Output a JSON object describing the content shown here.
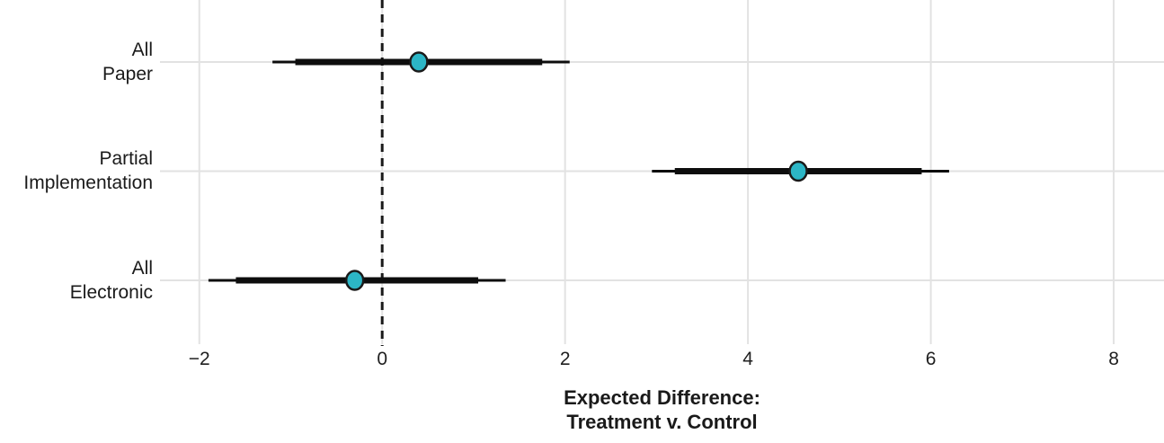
{
  "chart_data": {
    "type": "scatter",
    "subtype": "dot-and-whisker coefficient plot",
    "title": "",
    "xlabel_lines": [
      "Expected Difference:",
      "Treatment v. Control"
    ],
    "ylabel": "",
    "categories": [
      [
        "All",
        "Paper"
      ],
      [
        "Partial",
        "Implementation"
      ],
      [
        "All",
        "Electronic"
      ]
    ],
    "series": [
      {
        "label": "All Paper",
        "estimate": 0.4,
        "thick_ci": [
          -0.95,
          1.75
        ],
        "thin_ci": [
          -1.2,
          2.05
        ]
      },
      {
        "label": "Partial Implementation",
        "estimate": 4.55,
        "thick_ci": [
          3.2,
          5.9
        ],
        "thin_ci": [
          2.95,
          6.2
        ]
      },
      {
        "label": "All Electronic",
        "estimate": -0.3,
        "thick_ci": [
          -1.6,
          1.05
        ],
        "thin_ci": [
          -1.9,
          1.35
        ]
      }
    ],
    "x_tick_values": [
      -2,
      0,
      2,
      4,
      6,
      8
    ],
    "x_tick_labels": [
      "−2",
      "0",
      "2",
      "4",
      "6",
      "8"
    ],
    "xlim": [
      -2.43,
      8.55
    ],
    "reference_line_x": 0,
    "grid": true,
    "legend": "none",
    "colors": {
      "point_fill": "#2cb6c6",
      "point_stroke": "#1a1a1a",
      "bar": "#0d0d0d",
      "grid": "#e2e2e2",
      "reference_line": "#1a1a1a",
      "text": "#1a1a1a",
      "background": "#ffffff"
    }
  }
}
